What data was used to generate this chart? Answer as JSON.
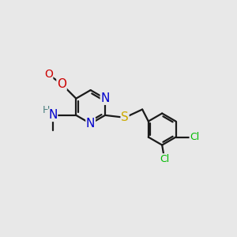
{
  "bg_color": "#e8e8e8",
  "bond_color": "#1a1a1a",
  "atom_colors": {
    "N": "#0000cc",
    "O": "#cc0000",
    "S": "#ccaa00",
    "Cl": "#00bb00",
    "H": "#4d8080",
    "C": "#1a1a1a"
  },
  "font_size": 10,
  "fig_size": [
    3.0,
    3.0
  ],
  "dpi": 100,
  "lw": 1.6,
  "ring_r": 0.72,
  "benz_r": 0.68
}
